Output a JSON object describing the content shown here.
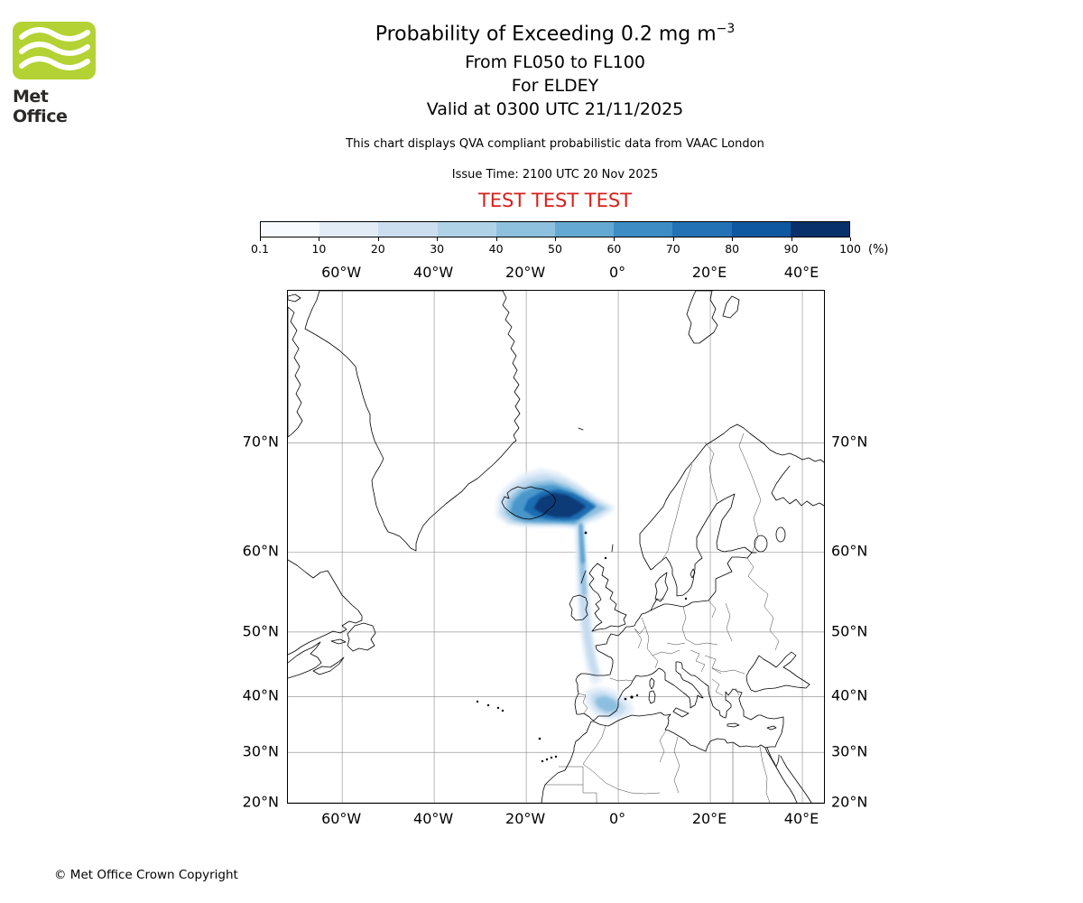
{
  "logo": {
    "brand": "Met Office",
    "green": "#b4d233",
    "text_color": "#2b2a28"
  },
  "header": {
    "title_main": "Probability of Exceeding 0.2 mg m",
    "title_sup": "−3",
    "subtitle1": "From FL050 to FL100",
    "subtitle2": "For ELDEY",
    "subtitle3": "Valid at 0300 UTC 21/11/2025",
    "note": "This chart displays QVA compliant probabilistic data from VAAC London",
    "issue_time": "Issue Time: 2100 UTC 20 Nov 2025",
    "test_banner": "TEST TEST TEST",
    "test_color": "#d8201c"
  },
  "legend": {
    "unit": "(%)",
    "tick_labels": [
      "0.1",
      "10",
      "20",
      "30",
      "40",
      "50",
      "60",
      "70",
      "80",
      "90",
      "100"
    ],
    "colors": [
      "#f7fbff",
      "#e1ecf7",
      "#cbdeef",
      "#b0d2e7",
      "#8ec1de",
      "#64a9d3",
      "#3d8dc4",
      "#2272b5",
      "#0e58a2",
      "#08306b"
    ]
  },
  "footer": {
    "copyright": "© Met Office Crown Copyright"
  },
  "chart_data": {
    "type": "heatmap",
    "subtype": "volcanic_ash_probability_map",
    "projection": "mercator",
    "quantity": "Probability of Exceeding 0.2 mg m-3",
    "threshold_mg_m3": 0.2,
    "layer": "FL050 to FL100",
    "volcano": "ELDEY",
    "valid": "0300 UTC 21/11/2025",
    "issued": "2100 UTC 20 Nov 2025",
    "source": "VAAC London",
    "grid": true,
    "legend_position": "top",
    "extent": {
      "lon_min": -71.8,
      "lon_max": 44.7,
      "lat_min": 20,
      "lat_max": 78.75
    },
    "lon_ticks": [
      {
        "value": -60,
        "label": "60°W"
      },
      {
        "value": -40,
        "label": "40°W"
      },
      {
        "value": -20,
        "label": "20°W"
      },
      {
        "value": 0,
        "label": "0°"
      },
      {
        "value": 20,
        "label": "20°E"
      },
      {
        "value": 40,
        "label": "40°E"
      }
    ],
    "lat_ticks": [
      {
        "value": 70,
        "label": "70°N"
      },
      {
        "value": 60,
        "label": "60°N"
      },
      {
        "value": 50,
        "label": "50°N"
      },
      {
        "value": 40,
        "label": "40°N"
      },
      {
        "value": 30,
        "label": "30°N"
      },
      {
        "value": 20,
        "label": "20°N"
      }
    ],
    "probability_bins_percent": [
      0.1,
      10,
      20,
      30,
      40,
      50,
      60,
      70,
      80,
      90,
      100
    ],
    "plume": {
      "description": "Ash probability fan NE of Iceland with narrow filament trailing south across the British Isles and Bay of Biscay to a diffuse maximum over southern Spain",
      "regions": [
        {
          "min_percent": 0.1,
          "color": "#e4eff9",
          "polygons": [
            [
              [
                -26.6,
                63.7
              ],
              [
                -26.3,
                65.5
              ],
              [
                -24.2,
                66.6
              ],
              [
                -20.6,
                67.6
              ],
              [
                -16.6,
                68.0
              ],
              [
                -12.6,
                67.6
              ],
              [
                -9.2,
                66.8
              ],
              [
                -5.2,
                65.6
              ],
              [
                -0.4,
                64.5
              ],
              [
                -3.6,
                63.5
              ],
              [
                -6.6,
                63.0
              ],
              [
                -8.6,
                62.5
              ],
              [
                -12.2,
                62.7
              ],
              [
                -16.2,
                62.7
              ],
              [
                -20.2,
                62.7
              ],
              [
                -24.0,
                62.9
              ]
            ],
            [
              [
                -9.3,
                63.1
              ],
              [
                -7.3,
                63.1
              ],
              [
                -6.9,
                60.5
              ],
              [
                -6.7,
                57.5
              ],
              [
                -6.3,
                54.5
              ],
              [
                -5.9,
                51.5
              ],
              [
                -5.5,
                49.0
              ],
              [
                -4.9,
                46.5
              ],
              [
                -4.1,
                44.0
              ],
              [
                -3.4,
                42.6
              ],
              [
                -5.6,
                41.9
              ],
              [
                -6.8,
                44.1
              ],
              [
                -7.5,
                46.9
              ],
              [
                -8.1,
                49.9
              ],
              [
                -8.6,
                52.9
              ],
              [
                -8.9,
                55.9
              ],
              [
                -9.1,
                58.9
              ],
              [
                -9.3,
                61.2
              ]
            ],
            [
              [
                -7.2,
                41.0
              ],
              [
                -4.8,
                41.7
              ],
              [
                -2.2,
                41.5
              ],
              [
                0.6,
                40.5
              ],
              [
                2.6,
                39.2
              ],
              [
                3.4,
                38.0
              ],
              [
                2.8,
                36.9
              ],
              [
                0.8,
                36.2
              ],
              [
                -1.6,
                36.0
              ],
              [
                -3.8,
                36.4
              ],
              [
                -5.6,
                37.2
              ],
              [
                -6.8,
                38.5
              ],
              [
                -7.4,
                39.8
              ]
            ]
          ]
        },
        {
          "min_percent": 10,
          "color": "#c3daef",
          "polygons": [
            [
              [
                -25.7,
                63.9
              ],
              [
                -25.3,
                65.4
              ],
              [
                -23.2,
                66.4
              ],
              [
                -19.8,
                67.2
              ],
              [
                -15.8,
                67.5
              ],
              [
                -11.9,
                67.1
              ],
              [
                -8.3,
                66.3
              ],
              [
                -4.7,
                65.2
              ],
              [
                -1.5,
                64.5
              ],
              [
                -4.3,
                63.7
              ],
              [
                -7.0,
                63.2
              ],
              [
                -8.8,
                62.7
              ],
              [
                -12.4,
                62.8
              ],
              [
                -16.4,
                62.8
              ],
              [
                -20.4,
                62.85
              ],
              [
                -23.8,
                63.1
              ]
            ],
            [
              [
                -8.9,
                63.0
              ],
              [
                -7.7,
                63.0
              ],
              [
                -7.3,
                60.3
              ],
              [
                -7.0,
                57.3
              ],
              [
                -6.6,
                54.3
              ],
              [
                -6.2,
                51.3
              ],
              [
                -5.7,
                48.5
              ],
              [
                -5.0,
                45.8
              ],
              [
                -4.2,
                43.6
              ],
              [
                -5.4,
                43.1
              ],
              [
                -6.5,
                45.7
              ],
              [
                -7.3,
                48.4
              ],
              [
                -7.9,
                51.3
              ],
              [
                -8.3,
                54.3
              ],
              [
                -8.6,
                57.3
              ],
              [
                -8.8,
                60.1
              ]
            ],
            [
              [
                -6.0,
                40.4
              ],
              [
                -3.8,
                40.9
              ],
              [
                -1.4,
                40.3
              ],
              [
                0.6,
                39.3
              ],
              [
                1.8,
                38.2
              ],
              [
                1.0,
                37.1
              ],
              [
                -1.0,
                36.6
              ],
              [
                -3.2,
                36.9
              ],
              [
                -4.9,
                37.7
              ],
              [
                -5.9,
                39.0
              ]
            ]
          ]
        },
        {
          "min_percent": 30,
          "color": "#8cbfdf",
          "polygons": [
            [
              [
                -24.6,
                64.0
              ],
              [
                -24.0,
                65.2
              ],
              [
                -21.9,
                66.1
              ],
              [
                -18.5,
                66.8
              ],
              [
                -14.7,
                67.0
              ],
              [
                -10.9,
                66.5
              ],
              [
                -7.5,
                65.7
              ],
              [
                -4.3,
                64.8
              ],
              [
                -2.7,
                64.45
              ],
              [
                -5.3,
                63.85
              ],
              [
                -7.7,
                63.3
              ],
              [
                -9.0,
                62.9
              ],
              [
                -12.6,
                63.0
              ],
              [
                -16.6,
                63.0
              ],
              [
                -20.6,
                63.05
              ],
              [
                -22.9,
                63.3
              ]
            ],
            [
              [
                -8.6,
                63.0
              ],
              [
                -7.9,
                63.0
              ],
              [
                -7.5,
                60.3
              ],
              [
                -7.2,
                57.5
              ],
              [
                -6.9,
                55.0
              ],
              [
                -7.8,
                54.8
              ],
              [
                -8.2,
                57.5
              ],
              [
                -8.4,
                60.2
              ]
            ],
            [
              [
                -4.8,
                39.8
              ],
              [
                -2.8,
                40.1
              ],
              [
                -0.8,
                39.4
              ],
              [
                0.2,
                38.4
              ],
              [
                -0.6,
                37.5
              ],
              [
                -2.6,
                37.4
              ],
              [
                -4.2,
                38.1
              ],
              [
                -5.0,
                39.0
              ]
            ]
          ]
        },
        {
          "min_percent": 50,
          "color": "#4896ca",
          "polygons": [
            [
              [
                -23.5,
                64.1
              ],
              [
                -22.9,
                65.1
              ],
              [
                -20.9,
                65.95
              ],
              [
                -17.5,
                66.5
              ],
              [
                -13.9,
                66.6
              ],
              [
                -10.3,
                66.1
              ],
              [
                -7.1,
                65.3
              ],
              [
                -4.7,
                64.7
              ],
              [
                -6.5,
                64.1
              ],
              [
                -8.5,
                63.5
              ],
              [
                -9.4,
                63.05
              ],
              [
                -13.0,
                63.1
              ],
              [
                -16.6,
                63.15
              ],
              [
                -20.0,
                63.2
              ],
              [
                -22.1,
                63.5
              ]
            ],
            [
              [
                -8.4,
                62.95
              ],
              [
                -7.9,
                62.95
              ],
              [
                -7.6,
                60.8
              ],
              [
                -7.3,
                58.8
              ],
              [
                -8.0,
                58.7
              ],
              [
                -8.2,
                60.8
              ]
            ]
          ]
        },
        {
          "min_percent": 70,
          "color": "#1d6cb1",
          "polygons": [
            [
              [
                -20.6,
                64.3
              ],
              [
                -19.6,
                65.3
              ],
              [
                -16.6,
                66.0
              ],
              [
                -13.1,
                66.2
              ],
              [
                -9.6,
                65.8
              ],
              [
                -6.6,
                65.1
              ],
              [
                -4.9,
                64.62
              ],
              [
                -6.8,
                64.0
              ],
              [
                -8.7,
                63.4
              ],
              [
                -11.6,
                63.3
              ],
              [
                -15.1,
                63.4
              ],
              [
                -18.4,
                63.7
              ]
            ]
          ]
        },
        {
          "min_percent": 90,
          "color": "#0a3a78",
          "polygons": [
            [
              [
                -18.4,
                64.45
              ],
              [
                -17.1,
                65.4
              ],
              [
                -14.1,
                65.9
              ],
              [
                -11.1,
                65.7
              ],
              [
                -8.6,
                65.1
              ],
              [
                -7.0,
                64.62
              ],
              [
                -8.7,
                64.05
              ],
              [
                -10.5,
                63.6
              ],
              [
                -13.6,
                63.6
              ],
              [
                -16.3,
                63.9
              ]
            ]
          ]
        }
      ]
    }
  }
}
